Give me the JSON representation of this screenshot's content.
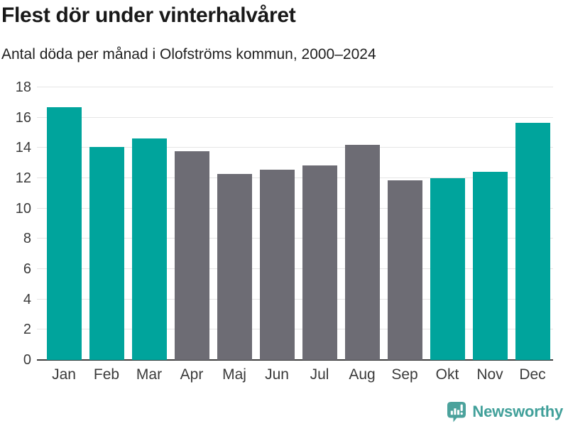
{
  "header": {
    "title": "Flest dör under vinterhalvåret",
    "subtitle": "Antal döda per månad i Olofströms kommun, 2000–2024"
  },
  "chart_data": {
    "type": "bar",
    "title": "Flest dör under vinterhalvåret",
    "subtitle": "Antal döda per månad i Olofströms kommun, 2000–2024",
    "categories": [
      "Jan",
      "Feb",
      "Mar",
      "Apr",
      "Maj",
      "Jun",
      "Jul",
      "Aug",
      "Sep",
      "Okt",
      "Nov",
      "Dec"
    ],
    "values": [
      16.68,
      14.08,
      14.64,
      13.8,
      12.28,
      12.56,
      12.84,
      14.2,
      11.88,
      12.0,
      12.44,
      15.68
    ],
    "bar_colors": [
      "#00a49c",
      "#00a49c",
      "#00a49c",
      "#6d6c74",
      "#6d6c74",
      "#6d6c74",
      "#6d6c74",
      "#6d6c74",
      "#6d6c74",
      "#00a49c",
      "#00a49c",
      "#00a49c"
    ],
    "highlighted_winter_months": [
      "Jan",
      "Feb",
      "Mar",
      "Okt",
      "Nov",
      "Dec"
    ],
    "xlabel": "",
    "ylabel": "",
    "ylim": [
      0,
      18
    ],
    "yticks": [
      0,
      2,
      4,
      6,
      8,
      10,
      12,
      14,
      16,
      18
    ],
    "grid": true,
    "legend": false
  },
  "colors": {
    "winter_teal": "#00a49c",
    "summer_gray": "#6d6c74",
    "gridline": "#e5e5e5",
    "axis_line": "#3d3d3d",
    "title_text": "#191919",
    "tick_text": "#3a3a3a",
    "brand_teal": "#41a09a"
  },
  "footer": {
    "brand_name": "Newsworthy",
    "logo_icon": "speech-bubble-bar-chart-icon"
  }
}
